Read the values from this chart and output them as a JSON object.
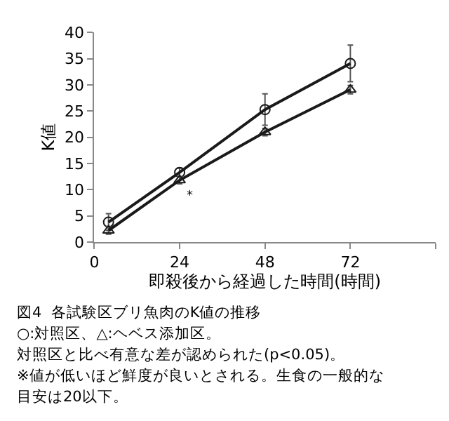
{
  "chart_data": {
    "type": "line",
    "xlabel": "即殺後から経過した時間(時間)",
    "ylabel": "K値",
    "x": [
      4,
      24,
      48,
      72
    ],
    "series": [
      {
        "color": "#1a1a1a",
        "marker": "circle",
        "values": [
          3.8,
          13.3,
          25.3,
          34.1
        ],
        "errors": [
          1.6,
          0.8,
          3.0,
          3.5
        ]
      },
      {
        "color": "#1a1a1a",
        "marker": "triangle",
        "values": [
          2.2,
          11.8,
          21.0,
          29.1
        ],
        "errors": [
          0.7,
          0.7,
          0.7,
          0.8
        ]
      }
    ],
    "xlim": [
      0,
      96
    ],
    "xticks": [
      0,
      24,
      48,
      72,
      {
        "value": 96,
        "label": null
      }
    ],
    "ylim": [
      0,
      40
    ],
    "yticks": [
      0,
      5,
      10,
      15,
      20,
      25,
      30,
      35,
      40
    ],
    "line_style": "solid",
    "annotations": [
      {
        "text": "*",
        "x": 24,
        "y": 11.8
      },
      "図4  各試験区ブリ魚肉のK値の推移",
      "○:対照区、△:ヘベス添加区。",
      "対照区と比べ有意な差が認められた(p<0.05)。",
      "※値が低いほど鮮度が良いとされる。生食の一般的な",
      "目安は20以下。"
    ]
  }
}
